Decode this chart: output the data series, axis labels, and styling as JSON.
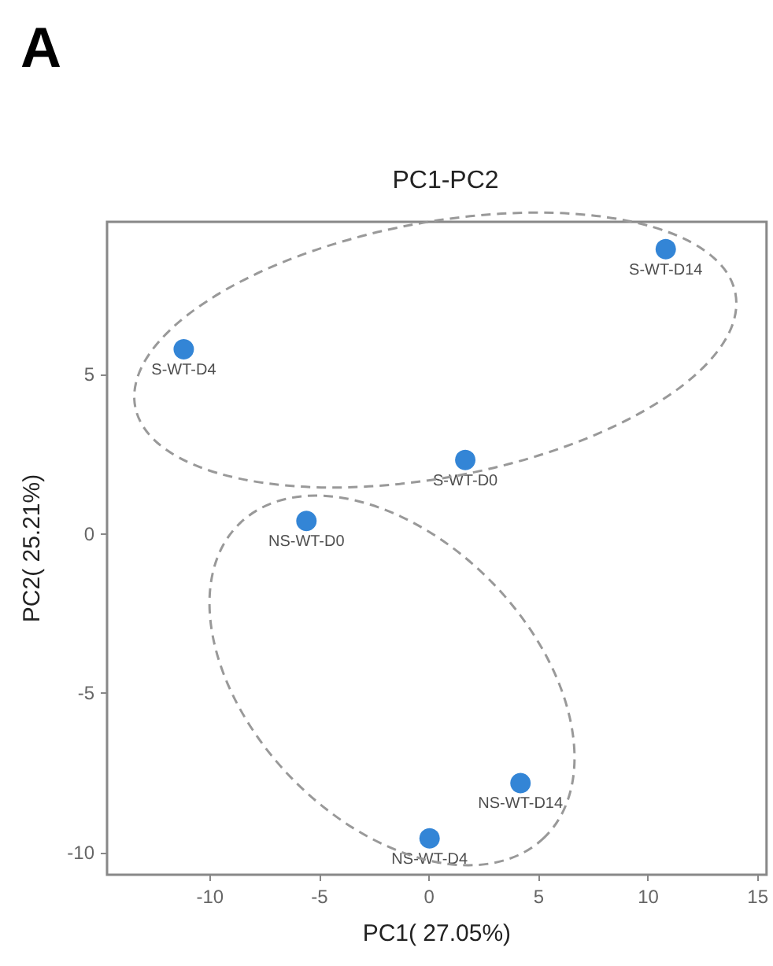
{
  "chart_data": {
    "type": "scatter",
    "title": "PC1-PC2",
    "xlabel": "PC1( 27.05%)",
    "ylabel": "PC2( 25.21%)",
    "annotations": [
      "A"
    ],
    "xlim": [
      -14.7,
      15.4
    ],
    "ylim": [
      -10.7,
      9.8
    ],
    "xticks": [
      -10,
      -5,
      0,
      5,
      10,
      15
    ],
    "yticks": [
      -10,
      -5,
      0,
      5
    ],
    "series": [
      {
        "type": "scatter",
        "color": "#0066cc",
        "marker": "circle",
        "x": [
          10.8,
          -11.2,
          1.65,
          -5.6,
          4.17,
          0.02
        ],
        "values": [
          8.94,
          5.8,
          2.32,
          0.41,
          -7.82,
          -9.56
        ],
        "value_labels": [
          "S-WT-D14",
          "S-WT-D4",
          "S-WT-D0",
          "NS-WT-D0",
          "NS-WT-D14",
          "NS-WT-D4"
        ]
      }
    ]
  }
}
